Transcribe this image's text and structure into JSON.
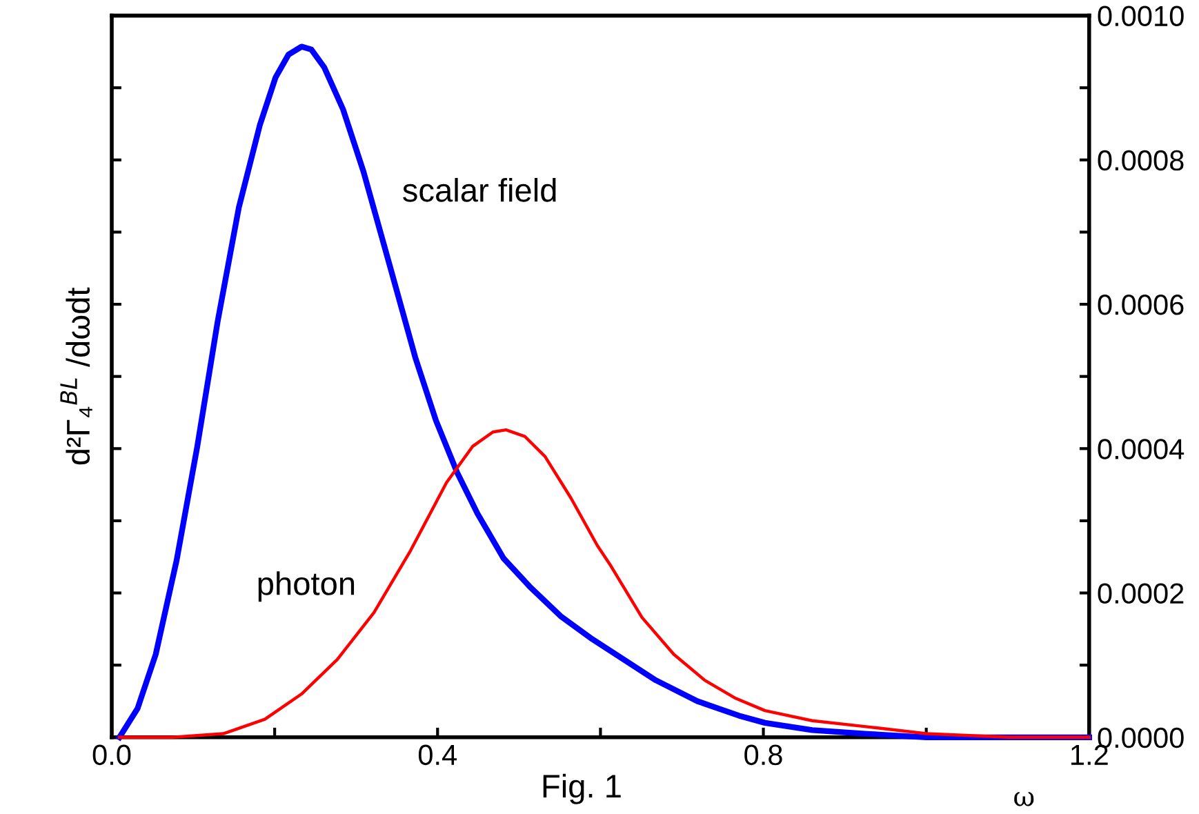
{
  "chart_data": {
    "type": "line",
    "xlabel": "ω",
    "ylabel": "d²Γ₄$^{BL}$ /dωdt",
    "xlim": [
      0,
      1.2
    ],
    "ylim": [
      0,
      0.001
    ],
    "xticks": [
      {
        "value": 0,
        "label": "0.0"
      },
      {
        "value": 0.2,
        "label": null
      },
      {
        "value": 0.4,
        "label": "0.4"
      },
      {
        "value": 0.6,
        "label": null
      },
      {
        "value": 0.8,
        "label": "0.8"
      },
      {
        "value": 1.0,
        "label": null
      },
      {
        "value": 1.2,
        "label": "1.2"
      }
    ],
    "yticks": [
      {
        "value": 0,
        "label": "0.0000"
      },
      {
        "value": 0.0001,
        "label": null
      },
      {
        "value": 0.0002,
        "label": "0.0002"
      },
      {
        "value": 0.0003,
        "label": null
      },
      {
        "value": 0.0004,
        "label": "0.0004"
      },
      {
        "value": 0.0005,
        "label": null
      },
      {
        "value": 0.0006,
        "label": "0.0006"
      },
      {
        "value": 0.0007,
        "label": null
      },
      {
        "value": 0.0008,
        "label": "0.0008"
      },
      {
        "value": 0.0009,
        "label": null
      },
      {
        "value": 0.001,
        "label": "0.0010"
      }
    ],
    "grid": false,
    "legend": false,
    "marker": "none",
    "line_style": "solid",
    "annotations": [
      "Fig. 1"
    ],
    "series": [
      {
        "name": "scalar field",
        "color": "#0000ff",
        "x": [
          0.0095,
          0.0317,
          0.054,
          0.0796,
          0.105,
          0.13,
          0.156,
          0.182,
          0.201,
          0.217,
          0.233,
          0.245,
          0.261,
          0.284,
          0.309,
          0.341,
          0.373,
          0.398,
          0.424,
          0.449,
          0.481,
          0.513,
          0.551,
          0.59,
          0.668,
          0.719,
          0.77,
          0.802,
          0.86,
          0.924,
          1.0,
          1.102,
          1.2
        ],
        "values": [
          0,
          4e-05,
          0.000115,
          0.000245,
          0.000403,
          0.000576,
          0.000734,
          0.000849,
          0.000914,
          0.000946,
          0.000957,
          0.000953,
          0.000928,
          0.00087,
          0.000784,
          0.000655,
          0.000525,
          0.000439,
          0.000367,
          0.00031,
          0.000248,
          0.000209,
          0.000168,
          0.000136,
          7.9e-05,
          5e-05,
          3e-05,
          2e-05,
          1e-05,
          5e-06,
          0,
          0,
          0
        ]
      },
      {
        "name": "photon",
        "color": "#ff0000",
        "x": [
          0.0095,
          0.073,
          0.137,
          0.188,
          0.233,
          0.277,
          0.322,
          0.367,
          0.411,
          0.443,
          0.468,
          0.484,
          0.507,
          0.532,
          0.564,
          0.596,
          0.613,
          0.651,
          0.69,
          0.728,
          0.766,
          0.802,
          0.86,
          0.924,
          1.0,
          1.102,
          1.2
        ],
        "values": [
          0,
          0,
          5e-06,
          2.5e-05,
          6e-05,
          0.000108,
          0.000173,
          0.000259,
          0.000353,
          0.000403,
          0.000423,
          0.000426,
          0.000417,
          0.000389,
          0.000331,
          0.000266,
          0.000237,
          0.000166,
          0.000115,
          7.9e-05,
          5.4e-05,
          3.7e-05,
          2.3e-05,
          1.5e-05,
          5e-06,
          0,
          0
        ]
      }
    ]
  }
}
